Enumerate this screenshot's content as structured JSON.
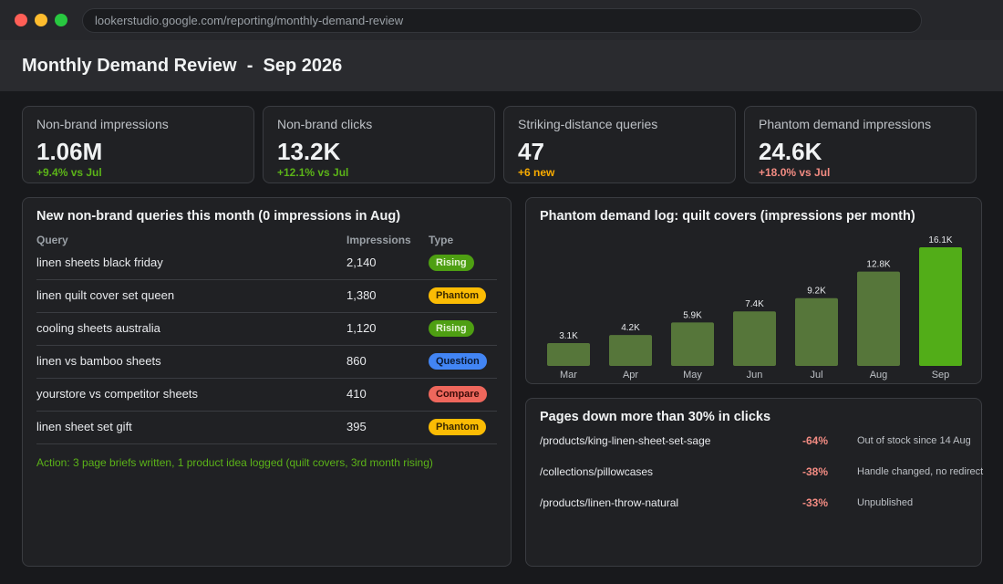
{
  "browser": {
    "url": "lookerstudio.google.com/reporting/monthly-demand-review"
  },
  "report": {
    "title": "Monthly Demand Review  -  Sep 2026"
  },
  "kpis": [
    {
      "label": "Non-brand impressions",
      "value": "1.06M",
      "delta": "+9.4% vs Jul",
      "tone": "green"
    },
    {
      "label": "Non-brand clicks",
      "value": "13.2K",
      "delta": "+12.1% vs Jul",
      "tone": "green"
    },
    {
      "label": "Striking-distance queries",
      "value": "47",
      "delta": "+6 new",
      "tone": "amber"
    },
    {
      "label": "Phantom demand impressions",
      "value": "24.6K",
      "delta": "+18.0% vs Jul",
      "tone": "red"
    }
  ],
  "queries_panel": {
    "title": "New non-brand queries this month (0 impressions in Aug)",
    "columns": {
      "query": "Query",
      "impressions": "Impressions",
      "type": "Type"
    },
    "rows": [
      {
        "query": "linen sheets black friday",
        "impressions": "2,140",
        "type": "Rising"
      },
      {
        "query": "linen quilt cover set queen",
        "impressions": "1,380",
        "type": "Phantom"
      },
      {
        "query": "cooling sheets australia",
        "impressions": "1,120",
        "type": "Rising"
      },
      {
        "query": "linen vs bamboo sheets",
        "impressions": "860",
        "type": "Question"
      },
      {
        "query": "yourstore vs competitor sheets",
        "impressions": "410",
        "type": "Compare"
      },
      {
        "query": "linen sheet set gift",
        "impressions": "395",
        "type": "Phantom"
      }
    ],
    "action_text": "Action: 3 page briefs written, 1 product idea logged (quilt covers, 3rd month rising)"
  },
  "colors": {
    "bar_default": "#56763a",
    "bar_highlight": "#52ad18",
    "rising": "#4e9f12",
    "phantom": "#fbbc04",
    "question": "#4285f4",
    "compare": "#ee675c"
  },
  "chart_data": {
    "type": "bar",
    "title": "Phantom demand log: quilt covers (impressions per month)",
    "categories": [
      "Mar",
      "Apr",
      "May",
      "Jun",
      "Jul",
      "Aug",
      "Sep"
    ],
    "values": [
      3100,
      4200,
      5900,
      7400,
      9200,
      12800,
      16100
    ],
    "data_labels": [
      "3.1K",
      "4.2K",
      "5.9K",
      "7.4K",
      "9.2K",
      "12.8K",
      "16.1K"
    ],
    "highlight_category": "Sep",
    "ylim": [
      0,
      16100
    ],
    "grid": false,
    "xlabel": "",
    "ylabel": ""
  },
  "pages_down": {
    "title": "Pages down more than 30% in clicks",
    "rows": [
      {
        "path": "/products/king-linen-sheet-set-sage",
        "change": "-64%",
        "note": "Out of stock since 14 Aug"
      },
      {
        "path": "/collections/pillowcases",
        "change": "-38%",
        "note": "Handle changed, no redirect"
      },
      {
        "path": "/products/linen-throw-natural",
        "change": "-33%",
        "note": "Unpublished"
      }
    ]
  }
}
